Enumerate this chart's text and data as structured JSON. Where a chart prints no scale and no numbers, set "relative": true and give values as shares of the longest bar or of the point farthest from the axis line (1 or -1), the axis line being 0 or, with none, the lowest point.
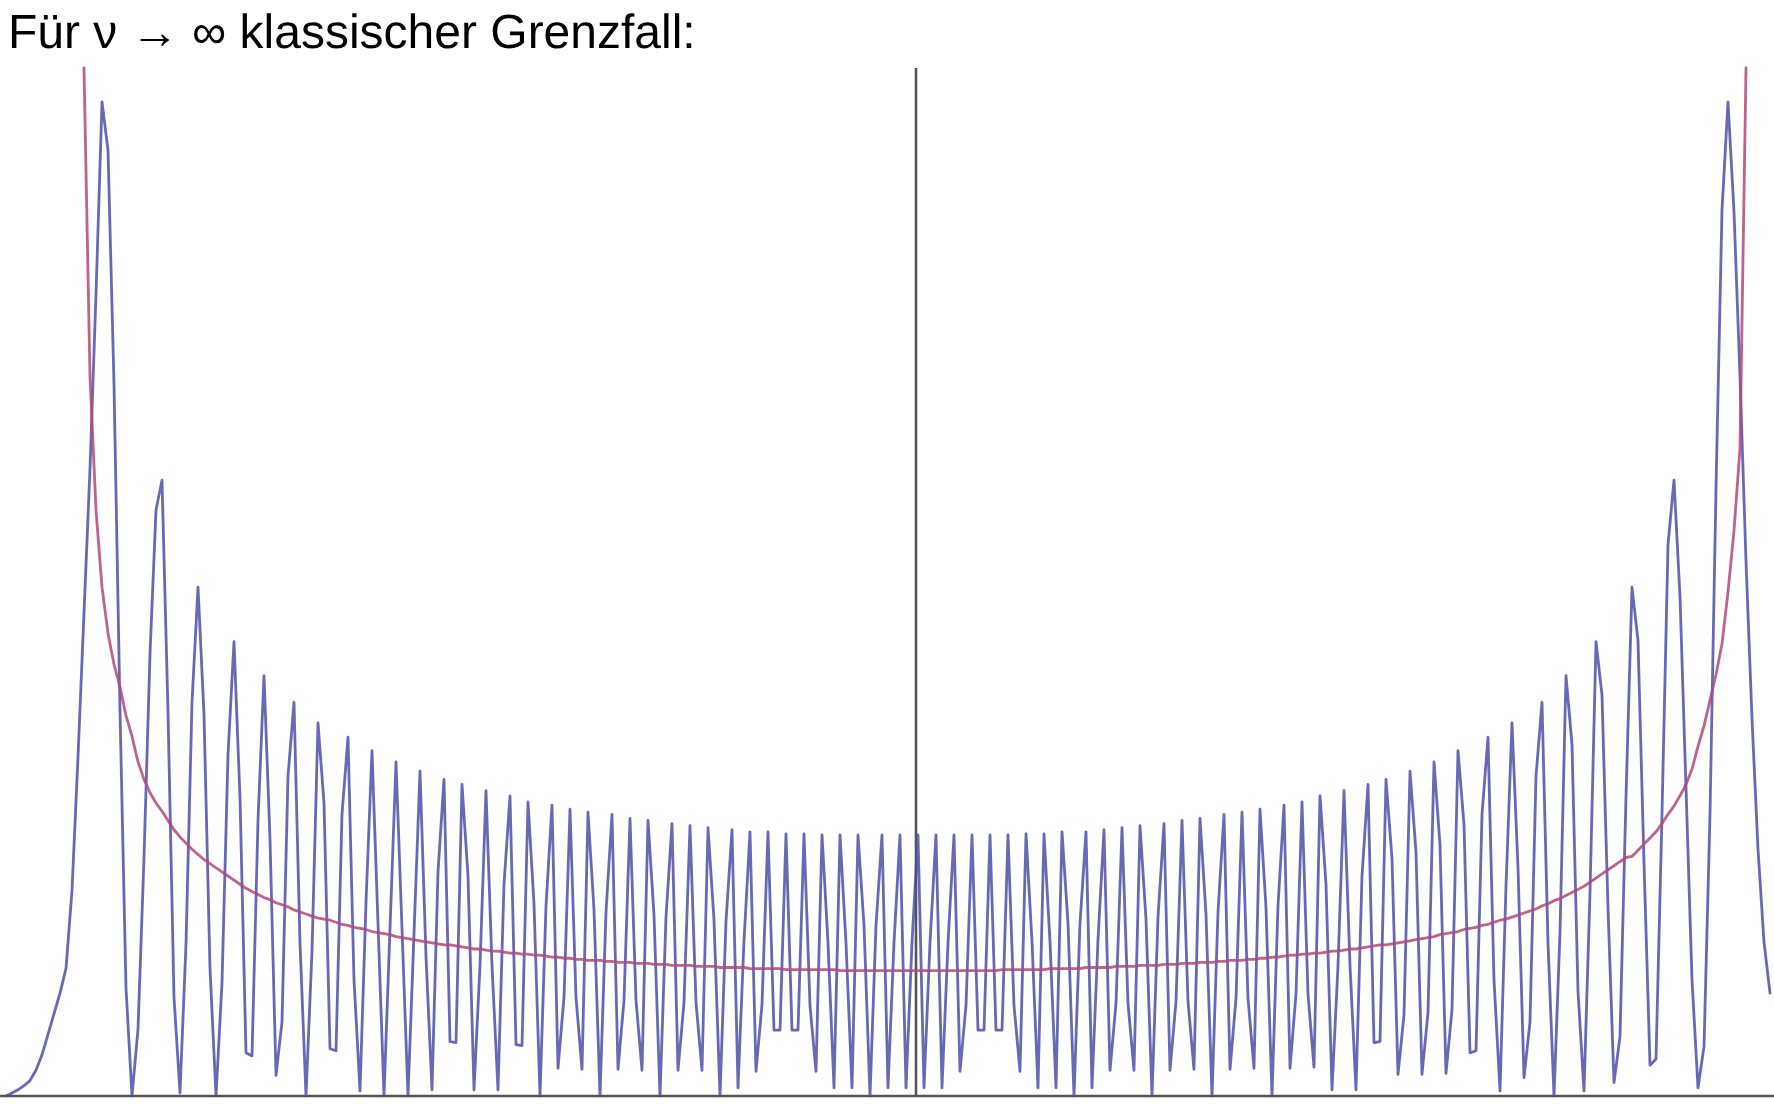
{
  "chart_data": {
    "type": "line",
    "title": "Für ν → ∞ klassischer Grenzfall:",
    "relative": true,
    "categories": [
      null,
      null,
      null,
      null,
      null,
      null,
      null,
      null,
      null,
      null,
      null,
      null,
      null,
      null,
      null,
      null,
      null,
      null,
      null,
      null,
      null,
      null,
      null,
      null,
      null,
      null,
      null,
      null,
      null,
      null,
      null,
      null,
      null,
      null,
      null,
      null,
      null,
      null,
      null,
      null,
      null,
      null,
      null,
      null,
      null,
      null,
      null,
      null,
      null,
      null,
      null,
      null,
      null,
      null,
      null,
      null,
      null,
      null,
      null,
      null,
      null,
      null,
      null,
      null,
      null,
      null,
      null,
      null,
      null,
      null,
      null,
      null,
      null,
      null,
      null,
      null,
      null,
      null,
      null,
      null,
      null,
      null,
      null,
      null,
      null,
      null,
      null,
      null,
      null,
      null,
      null,
      null,
      null,
      null,
      null,
      null,
      null,
      null,
      null,
      null,
      null,
      null,
      null,
      null,
      null,
      null,
      null,
      null,
      null,
      null,
      null,
      null,
      null,
      null,
      null,
      null,
      null,
      null,
      null,
      null,
      null,
      null,
      null,
      null,
      null,
      null,
      null,
      null,
      null,
      null,
      null,
      null,
      null,
      null,
      null,
      null,
      null,
      null,
      null,
      null,
      null,
      null,
      null,
      null,
      null,
      null,
      null,
      null,
      null,
      null,
      null,
      null,
      null,
      null,
      null,
      null,
      null,
      null,
      null,
      null,
      null,
      null,
      null,
      null,
      null,
      null,
      null,
      null,
      null,
      null,
      null,
      null,
      null,
      null,
      null,
      null,
      null,
      null,
      null,
      null,
      null,
      null,
      null,
      null,
      null,
      null,
      null,
      null,
      null,
      null,
      null,
      null,
      null,
      null,
      null,
      null,
      null,
      null,
      null,
      null,
      null,
      null,
      null,
      null,
      null,
      null,
      null,
      null,
      null,
      null,
      null,
      null,
      null,
      null,
      null,
      null,
      null,
      null,
      null,
      null,
      null,
      null,
      null,
      null,
      null,
      null,
      null,
      null,
      null,
      null,
      null,
      null,
      null,
      null,
      null,
      null,
      null,
      null,
      null,
      null,
      null,
      null,
      null,
      null,
      null,
      null,
      null,
      null,
      null,
      null,
      null,
      null,
      null,
      null,
      null,
      null,
      null,
      null,
      null,
      null,
      null,
      null,
      null,
      null,
      null,
      null,
      null,
      null,
      null,
      null,
      null,
      null,
      null,
      null,
      null,
      null,
      null,
      null,
      null,
      null,
      null,
      null,
      null,
      null,
      null,
      null,
      null,
      null,
      null,
      null,
      null,
      null,
      null,
      null,
      null
    ],
    "series": [
      {
        "color": "#4d4fa8",
        "values": [
          0,
          0.003,
          0.006,
          0.01,
          0.015,
          0.025,
          0.04,
          0.06,
          0.08,
          0.1,
          0.124,
          0.2,
          0.33,
          0.47,
          0.61,
          0.78,
          0.967,
          0.92,
          0.693,
          0.375,
          0.105,
          0,
          0.065,
          0.232,
          0.43,
          0.57,
          0.599,
          0.374,
          0.096,
          0.003,
          0.148,
          0.383,
          0.495,
          0.371,
          0.124,
          0,
          0.11,
          0.332,
          0.442,
          0.29,
          0.042,
          0.039,
          0.268,
          0.409,
          0.25,
          0.02,
          0.072,
          0.311,
          0.383,
          0.149,
          0,
          0.141,
          0.363,
          0.285,
          0.046,
          0.044,
          0.274,
          0.349,
          0.113,
          0.005,
          0.188,
          0.336,
          0.168,
          0,
          0.163,
          0.325,
          0.163,
          0,
          0.158,
          0.316,
          0.136,
          0.006,
          0.218,
          0.308,
          0.053,
          0.052,
          0.303,
          0.214,
          0.006,
          0.127,
          0.297,
          0.127,
          0.006,
          0.206,
          0.292,
          0.05,
          0.049,
          0.286,
          0.187,
          0,
          0.185,
          0.283,
          0.027,
          0.096,
          0.279,
          0.096,
          0.026,
          0.276,
          0.181,
          0,
          0.179,
          0.274,
          0.026,
          0.093,
          0.27,
          0.093,
          0.025,
          0.268,
          0.176,
          0,
          0.174,
          0.265,
          0.025,
          0.091,
          0.263,
          0.091,
          0.025,
          0.261,
          0.171,
          0,
          0.17,
          0.259,
          0.008,
          0.151,
          0.257,
          0.024,
          0.089,
          0.257,
          0.064,
          0.064,
          0.255,
          0.064,
          0.064,
          0.255,
          0.088,
          0.024,
          0.254,
          0.149,
          0.008,
          0.254,
          0.149,
          0.008,
          0.254,
          0.166,
          0,
          0.166,
          0.254,
          0.008,
          0.149,
          0.254,
          0.008,
          0.149,
          0.254,
          0.008,
          0.149,
          0.254,
          0.008,
          0.149,
          0.254,
          0.024,
          0.088,
          0.254,
          0.064,
          0.064,
          0.254,
          0.064,
          0.064,
          0.254,
          0.088,
          0.024,
          0.255,
          0.15,
          0.008,
          0.255,
          0.15,
          0.008,
          0.257,
          0.168,
          0,
          0.168,
          0.257,
          0.008,
          0.152,
          0.259,
          0.025,
          0.09,
          0.261,
          0.09,
          0.025,
          0.263,
          0.172,
          0,
          0.174,
          0.265,
          0.025,
          0.092,
          0.268,
          0.092,
          0.026,
          0.27,
          0.177,
          0,
          0.179,
          0.274,
          0.026,
          0.095,
          0.276,
          0.095,
          0.027,
          0.279,
          0.183,
          0,
          0.185,
          0.283,
          0.027,
          0.099,
          0.286,
          0.099,
          0.028,
          0.292,
          0.206,
          0.006,
          0.127,
          0.297,
          0.127,
          0.006,
          0.214,
          0.303,
          0.052,
          0.053,
          0.308,
          0.231,
          0.021,
          0.079,
          0.316,
          0.237,
          0.021,
          0.081,
          0.325,
          0.244,
          0.022,
          0.084,
          0.336,
          0.264,
          0.042,
          0.044,
          0.274,
          0.349,
          0.113,
          0.005,
          0.204,
          0.363,
          0.222,
          0.018,
          0.072,
          0.311,
          0.383,
          0.149,
          0,
          0.159,
          0.409,
          0.342,
          0.102,
          0.005,
          0.198,
          0.442,
          0.39,
          0.183,
          0.013,
          0.058,
          0.291,
          0.495,
          0.443,
          0.227,
          0.03,
          0.036,
          0.274,
          0.536,
          0.599,
          0.486,
          0.3,
          0.113,
          0.008,
          0.048,
          0.274,
          0.591,
          0.862,
          0.967,
          0.86,
          0.7,
          0.52,
          0.367,
          0.24,
          0.15,
          0.1
        ]
      },
      {
        "color": "#b3467a",
        "values": [
          null,
          null,
          null,
          null,
          null,
          null,
          null,
          null,
          null,
          null,
          null,
          null,
          null,
          1.0,
          0.7,
          0.57,
          0.495,
          0.45,
          0.42,
          0.398,
          0.37,
          0.35,
          0.325,
          0.308,
          0.295,
          0.285,
          0.277,
          0.268,
          0.259,
          0.252,
          0.246,
          0.24,
          0.235,
          0.23,
          0.226,
          0.222,
          0.218,
          0.214,
          0.21,
          0.206,
          0.202,
          0.199,
          0.196,
          0.193,
          0.191,
          0.188,
          0.186,
          0.184,
          0.181,
          0.179,
          0.177,
          0.175,
          0.173,
          0.172,
          0.171,
          0.169,
          0.167,
          0.166,
          0.164,
          0.163,
          0.162,
          0.16,
          0.159,
          0.158,
          0.157,
          0.155,
          0.154,
          0.153,
          0.152,
          0.151,
          0.15,
          0.149,
          0.148,
          0.147,
          0.147,
          0.146,
          0.145,
          0.144,
          0.143,
          0.143,
          0.142,
          0.141,
          0.141,
          0.14,
          0.139,
          0.139,
          0.138,
          0.138,
          0.137,
          0.137,
          0.136,
          0.135,
          0.135,
          0.134,
          0.134,
          0.133,
          0.133,
          0.132,
          0.132,
          0.132,
          0.131,
          0.131,
          0.13,
          0.13,
          0.13,
          0.129,
          0.129,
          0.129,
          0.128,
          0.128,
          0.128,
          0.127,
          0.127,
          0.127,
          0.127,
          0.126,
          0.126,
          0.126,
          0.126,
          0.125,
          0.125,
          0.125,
          0.125,
          0.125,
          0.124,
          0.124,
          0.124,
          0.124,
          0.124,
          0.124,
          0.123,
          0.123,
          0.123,
          0.123,
          0.123,
          0.123,
          0.123,
          0.123,
          0.123,
          0.122,
          0.122,
          0.122,
          0.122,
          0.122,
          0.122,
          0.122,
          0.122,
          0.122,
          0.122,
          0.122,
          0.122,
          0.122,
          0.122,
          0.122,
          0.122,
          0.122,
          0.122,
          0.122,
          0.122,
          0.122,
          0.122,
          0.122,
          0.122,
          0.122,
          0.122,
          0.122,
          0.123,
          0.123,
          0.123,
          0.123,
          0.123,
          0.123,
          0.123,
          0.123,
          0.124,
          0.124,
          0.124,
          0.124,
          0.124,
          0.124,
          0.125,
          0.125,
          0.125,
          0.125,
          0.125,
          0.126,
          0.126,
          0.126,
          0.126,
          0.127,
          0.127,
          0.127,
          0.127,
          0.128,
          0.128,
          0.128,
          0.129,
          0.129,
          0.129,
          0.13,
          0.13,
          0.13,
          0.131,
          0.131,
          0.132,
          0.132,
          0.132,
          0.133,
          0.133,
          0.134,
          0.134,
          0.135,
          0.135,
          0.136,
          0.137,
          0.137,
          0.138,
          0.138,
          0.139,
          0.139,
          0.14,
          0.141,
          0.141,
          0.142,
          0.143,
          0.143,
          0.144,
          0.145,
          0.146,
          0.147,
          0.147,
          0.148,
          0.149,
          0.15,
          0.151,
          0.152,
          0.153,
          0.154,
          0.155,
          0.157,
          0.158,
          0.159,
          0.16,
          0.162,
          0.163,
          0.164,
          0.166,
          0.167,
          0.169,
          0.171,
          0.172,
          0.174,
          0.176,
          0.178,
          0.18,
          0.182,
          0.185,
          0.187,
          0.19,
          0.192,
          0.195,
          0.198,
          0.201,
          0.204,
          0.208,
          0.212,
          0.216,
          0.22,
          0.224,
          0.228,
          0.232,
          0.233,
          0.239,
          0.245,
          0.251,
          0.257,
          0.265,
          0.274,
          0.282,
          0.292,
          0.303,
          0.318,
          0.34,
          0.36,
          0.385,
          0.41,
          0.44,
          0.49,
          0.55,
          0.63,
          1.0,
          null,
          null,
          null,
          null
        ]
      }
    ]
  }
}
